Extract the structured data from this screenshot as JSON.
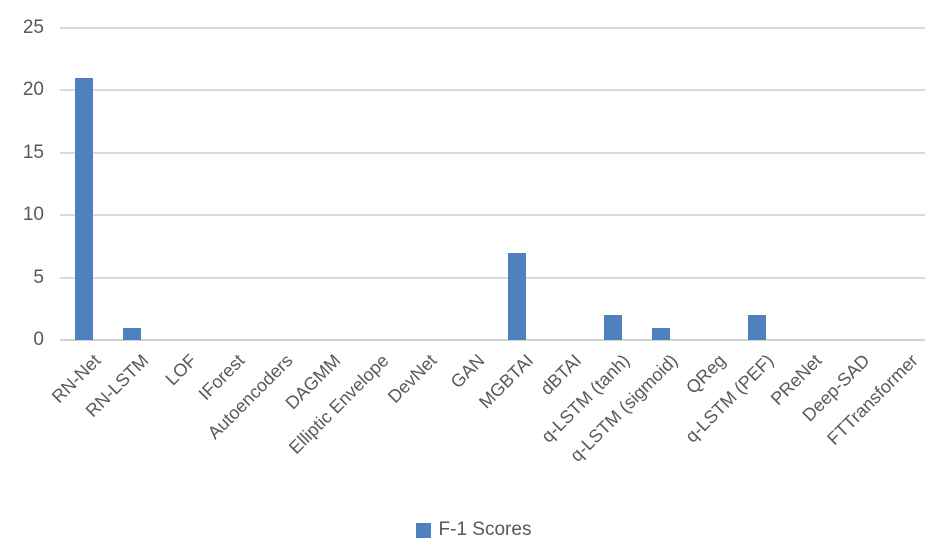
{
  "chart_data": {
    "type": "bar",
    "title": "",
    "xlabel": "",
    "ylabel": "",
    "categories": [
      "RN-Net",
      "RN-LSTM",
      "LOF",
      "IForest",
      "Autoencoders",
      "DAGMM",
      "Elliptic Envelope",
      "DevNet",
      "GAN",
      "MGBTAI",
      "dBTAI",
      "q-LSTM (tanh)",
      "q-LSTM (sigmoid)",
      "QReg",
      "q-LSTM (PEF)",
      "PReNet",
      "Deep-SAD",
      "FTTransformer"
    ],
    "series": [
      {
        "name": "F-1 Scores",
        "values": [
          21,
          1,
          0,
          0,
          0,
          0,
          0,
          0,
          0,
          7,
          0,
          2,
          1,
          0,
          2,
          0,
          0,
          0
        ]
      }
    ],
    "ylim": [
      0,
      25
    ],
    "yticks": [
      0,
      5,
      10,
      15,
      20,
      25
    ],
    "grid": true,
    "legend": {
      "label": "F-1 Scores",
      "position": "bottom",
      "marker": "square"
    },
    "colors": {
      "bar": "#4e81bd",
      "gridline": "#d9d9d9",
      "axis_line": "#d2d2d2",
      "text": "#595959",
      "background": "#ffffff"
    }
  }
}
